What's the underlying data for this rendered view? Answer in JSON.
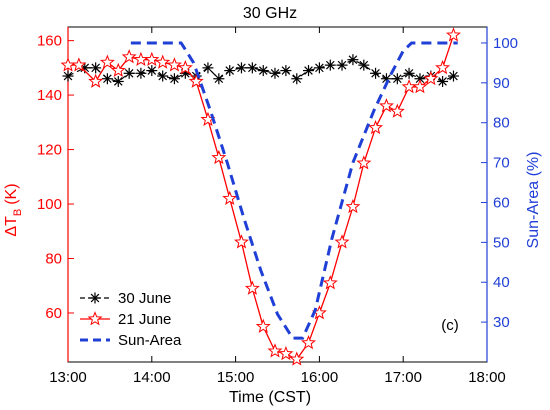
{
  "chart_data": {
    "type": "line",
    "title": "30 GHz",
    "xlabel": "Time (CST)",
    "ylabel_left": "ΔT",
    "ylabel_left_sub": "B",
    "ylabel_left_unit": "(K)",
    "ylabel_right": "Sun-Area (%)",
    "panel_label": "(c)",
    "xlim": [
      13.0,
      18.0
    ],
    "ylim_left": [
      42,
      165
    ],
    "ylim_right": [
      20,
      104
    ],
    "xticks": [
      13,
      14,
      15,
      16,
      17,
      18
    ],
    "xtick_labels": [
      "13:00",
      "14:00",
      "15:00",
      "16:00",
      "17:00",
      "18:00"
    ],
    "yticks_left": [
      60,
      80,
      100,
      120,
      140,
      160
    ],
    "yticks_left_labels": [
      "60",
      "80",
      "100",
      "120",
      "140",
      "160"
    ],
    "yticks_right": [
      30,
      40,
      50,
      60,
      70,
      80,
      90,
      100
    ],
    "yticks_right_labels": [
      "30",
      "40",
      "50",
      "60",
      "70",
      "80",
      "90",
      "100"
    ],
    "legend_position": "bottom-left",
    "series": [
      {
        "name": "30 June",
        "axis": "left",
        "color": "#000000",
        "linestyle": "dashed",
        "marker": "asterisk",
        "x": [
          13.0,
          13.2,
          13.33,
          13.47,
          13.6,
          13.73,
          13.87,
          14.0,
          14.13,
          14.27,
          14.4,
          14.53,
          14.67,
          14.8,
          14.93,
          15.07,
          15.2,
          15.33,
          15.47,
          15.6,
          15.73,
          15.87,
          16.0,
          16.13,
          16.27,
          16.4,
          16.53,
          16.67,
          16.8,
          16.93,
          17.07,
          17.2,
          17.33,
          17.47,
          17.6
        ],
        "y": [
          147,
          150,
          150,
          146,
          145,
          148,
          148,
          149,
          147,
          146,
          148,
          147,
          150,
          146,
          149,
          150,
          150,
          149,
          148,
          149,
          146,
          149,
          150,
          151,
          151,
          153,
          151,
          148,
          146,
          146,
          148,
          146,
          147,
          145,
          147
        ]
      },
      {
        "name": "21 June",
        "axis": "left",
        "color": "#ff0000",
        "linestyle": "solid",
        "marker": "star",
        "x": [
          13.0,
          13.13,
          13.33,
          13.47,
          13.6,
          13.73,
          13.87,
          14.0,
          14.13,
          14.27,
          14.4,
          14.53,
          14.67,
          14.8,
          14.93,
          15.07,
          15.2,
          15.33,
          15.47,
          15.6,
          15.73,
          15.87,
          16.0,
          16.13,
          16.27,
          16.4,
          16.53,
          16.67,
          16.8,
          16.93,
          17.07,
          17.2,
          17.33,
          17.47,
          17.6
        ],
        "y": [
          151,
          151,
          145,
          152,
          149,
          154,
          153,
          153,
          152,
          151,
          150,
          145,
          131,
          117,
          102,
          86,
          69,
          55,
          46,
          45,
          43,
          49,
          60,
          71,
          86,
          99,
          115,
          128,
          136,
          134,
          143,
          143,
          146,
          150,
          162
        ]
      },
      {
        "name": "Sun-Area",
        "axis": "right",
        "color": "#1f3fd6",
        "linestyle": "dashed",
        "marker": "none",
        "x": [
          13.75,
          14.35,
          14.5,
          14.7,
          14.9,
          15.1,
          15.3,
          15.5,
          15.68,
          15.8,
          15.95,
          16.15,
          16.4,
          16.65,
          16.85,
          17.0,
          17.1,
          17.65
        ],
        "y": [
          100,
          100,
          95,
          83,
          70,
          56,
          43,
          32,
          26,
          26,
          33,
          51,
          70,
          83,
          92,
          98,
          100,
          100
        ]
      }
    ]
  }
}
